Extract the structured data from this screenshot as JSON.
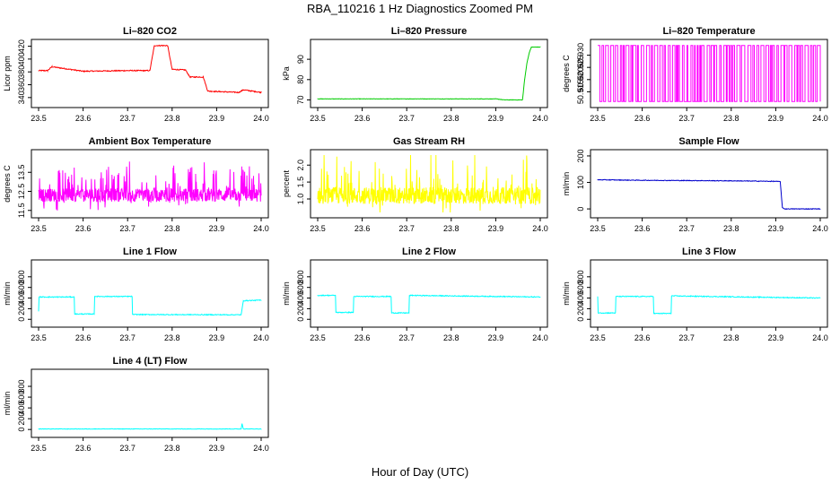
{
  "figure": {
    "title": "RBA_110216  1 Hz Diagnostics Zoomed PM",
    "xlabel": "Hour of Day (UTC)"
  },
  "chart_data": [
    {
      "type": "line",
      "title": "Li–820 CO2",
      "ylabel": "Licor ppm",
      "color": "#ff0000",
      "xlim": [
        23.5,
        24.0
      ],
      "ylim": [
        330,
        425
      ],
      "xticks": [
        "23.5",
        "23.6",
        "23.7",
        "23.8",
        "23.9",
        "24.0"
      ],
      "yticks": [
        "340",
        "360",
        "380",
        "400",
        "420"
      ],
      "series": [
        {
          "x": [
            23.5,
            23.52,
            23.53,
            23.6,
            23.7,
            23.75,
            23.76,
            23.79,
            23.8,
            23.83,
            23.84,
            23.87,
            23.88,
            23.95,
            23.96,
            24.0
          ],
          "values": [
            382,
            382,
            388,
            381,
            382,
            382,
            421,
            421,
            384,
            383,
            372,
            372,
            350,
            348,
            352,
            348
          ]
        }
      ]
    },
    {
      "type": "line",
      "title": "Li–820 Pressure",
      "ylabel": "kPa",
      "color": "#00cc00",
      "xlim": [
        23.5,
        24.0
      ],
      "ylim": [
        68,
        98
      ],
      "xticks": [
        "23.5",
        "23.6",
        "23.7",
        "23.8",
        "23.9",
        "24.0"
      ],
      "yticks": [
        "70",
        "80",
        "90"
      ],
      "series": [
        {
          "x": [
            23.5,
            23.6,
            23.7,
            23.8,
            23.9,
            23.92,
            23.96,
            23.965,
            23.97,
            23.975,
            23.98,
            24.0
          ],
          "values": [
            70.5,
            70.5,
            70.5,
            70.5,
            70.5,
            70.0,
            70.0,
            80,
            88,
            93,
            96,
            96
          ]
        }
      ]
    },
    {
      "type": "line",
      "title": "Li–820 Temperature",
      "ylabel": "degrees C",
      "color": "#ff00ff",
      "xlim": [
        23.5,
        24.0
      ],
      "ylim": [
        50.91,
        50.935
      ],
      "xticks": [
        "23.5",
        "23.6",
        "23.7",
        "23.8",
        "23.9",
        "24.0"
      ],
      "yticks": [
        "50.915",
        "50.920",
        "50.925",
        "50.930"
      ],
      "values_pattern": "rapid toggling between 50.911 and 50.934",
      "series": [
        {
          "x": [
            23.5,
            24.0
          ],
          "values": [
            50.911,
            50.934
          ]
        }
      ]
    },
    {
      "type": "line",
      "title": "Ambient Box Temperature",
      "ylabel": "degrees C",
      "color": "#ff00ff",
      "xlim": [
        23.5,
        24.0
      ],
      "ylim": [
        11.3,
        14.5
      ],
      "xticks": [
        "23.5",
        "23.6",
        "23.7",
        "23.8",
        "23.9",
        "24.0"
      ],
      "yticks": [
        "11.5",
        "12.5",
        "13.5"
      ],
      "series": [
        {
          "x": [
            23.5,
            24.0
          ],
          "values": [
            12.3,
            12.3
          ]
        }
      ]
    },
    {
      "type": "line",
      "title": "Gas Stream RH",
      "ylabel": "percent",
      "color": "#ffff00",
      "xlim": [
        23.5,
        24.0
      ],
      "ylim": [
        0.55,
        2.35
      ],
      "xticks": [
        "23.5",
        "23.6",
        "23.7",
        "23.8",
        "23.9",
        "24.0"
      ],
      "yticks": [
        "1.0",
        "1.5",
        "2.0"
      ],
      "series": [
        {
          "x": [
            23.5,
            24.0
          ],
          "values": [
            1.1,
            1.1
          ]
        }
      ]
    },
    {
      "type": "line",
      "title": "Sample Flow",
      "ylabel": "ml/min",
      "color": "#0000cc",
      "xlim": [
        23.5,
        24.0
      ],
      "ylim": [
        -20,
        210
      ],
      "xticks": [
        "23.5",
        "23.6",
        "23.7",
        "23.8",
        "23.9",
        "24.0"
      ],
      "yticks": [
        "0",
        "100",
        "200"
      ],
      "series": [
        {
          "x": [
            23.5,
            23.6,
            23.7,
            23.8,
            23.9,
            23.91,
            23.915,
            23.92,
            24.0
          ],
          "values": [
            110,
            108,
            107,
            106,
            104,
            103,
            5,
            0,
            0
          ]
        }
      ]
    },
    {
      "type": "line",
      "title": "Line 1 Flow",
      "ylabel": "ml/min",
      "color": "#00ffff",
      "xlim": [
        23.5,
        24.0
      ],
      "ylim": [
        -80,
        1050
      ],
      "xticks": [
        "23.5",
        "23.6",
        "23.7",
        "23.8",
        "23.9",
        "24.0"
      ],
      "yticks": [
        "0",
        "200",
        "400",
        "600",
        "800"
      ],
      "series": [
        {
          "x": [
            23.5,
            23.501,
            23.58,
            23.581,
            23.625,
            23.626,
            23.71,
            23.711,
            23.955,
            23.96,
            24.0
          ],
          "values": [
            150,
            420,
            420,
            100,
            100,
            430,
            430,
            90,
            85,
            350,
            360
          ]
        }
      ]
    },
    {
      "type": "line",
      "title": "Line 2 Flow",
      "ylabel": "ml/min",
      "color": "#00ffff",
      "xlim": [
        23.5,
        24.0
      ],
      "ylim": [
        -80,
        1050
      ],
      "xticks": [
        "23.5",
        "23.6",
        "23.7",
        "23.8",
        "23.9",
        "24.0"
      ],
      "yticks": [
        "0",
        "200",
        "400",
        "600",
        "800"
      ],
      "series": [
        {
          "x": [
            23.5,
            23.54,
            23.541,
            23.58,
            23.581,
            23.665,
            23.666,
            23.705,
            23.706,
            24.0
          ],
          "values": [
            450,
            450,
            130,
            130,
            430,
            430,
            120,
            120,
            450,
            420
          ]
        }
      ]
    },
    {
      "type": "line",
      "title": "Line 3 Flow",
      "ylabel": "ml/min",
      "color": "#00ffff",
      "xlim": [
        23.5,
        24.0
      ],
      "ylim": [
        -80,
        1050
      ],
      "xticks": [
        "23.5",
        "23.6",
        "23.7",
        "23.8",
        "23.9",
        "24.0"
      ],
      "yticks": [
        "0",
        "200",
        "400",
        "600",
        "800"
      ],
      "series": [
        {
          "x": [
            23.5,
            23.501,
            23.54,
            23.541,
            23.625,
            23.626,
            23.665,
            23.666,
            24.0
          ],
          "values": [
            430,
            120,
            120,
            430,
            430,
            110,
            110,
            440,
            400
          ]
        }
      ]
    },
    {
      "type": "line",
      "title": "Line 4 (LT) Flow",
      "ylabel": "ml/min",
      "color": "#00ffff",
      "xlim": [
        23.5,
        24.0
      ],
      "ylim": [
        -80,
        1050
      ],
      "xticks": [
        "23.5",
        "23.6",
        "23.7",
        "23.8",
        "23.9",
        "24.0"
      ],
      "yticks": [
        "0",
        "200",
        "400",
        "600",
        "800"
      ],
      "series": [
        {
          "x": [
            23.5,
            23.6,
            23.7,
            23.8,
            23.9,
            23.955,
            23.957,
            23.96,
            24.0
          ],
          "values": [
            10,
            10,
            10,
            10,
            10,
            10,
            110,
            10,
            10
          ]
        }
      ]
    }
  ]
}
